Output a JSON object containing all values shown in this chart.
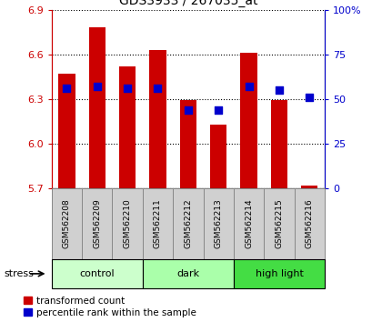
{
  "title": "GDS3933 / 267035_at",
  "samples": [
    "GSM562208",
    "GSM562209",
    "GSM562210",
    "GSM562211",
    "GSM562212",
    "GSM562213",
    "GSM562214",
    "GSM562215",
    "GSM562216"
  ],
  "transformed_counts": [
    6.47,
    6.78,
    6.52,
    6.63,
    6.29,
    6.13,
    6.61,
    6.29,
    5.72
  ],
  "percentile_ranks": [
    56,
    57,
    56,
    56,
    44,
    44,
    57,
    55,
    51
  ],
  "ylim": [
    5.7,
    6.9
  ],
  "yticks": [
    5.7,
    6.0,
    6.3,
    6.6,
    6.9
  ],
  "y_right_ticks": [
    0,
    25,
    50,
    75,
    100
  ],
  "bar_color": "#cc0000",
  "dot_color": "#0000cc",
  "group_configs": [
    {
      "start": 0,
      "end": 2,
      "label": "control",
      "color": "#ccffcc"
    },
    {
      "start": 3,
      "end": 5,
      "label": "dark",
      "color": "#aaffaa"
    },
    {
      "start": 6,
      "end": 8,
      "label": "high light",
      "color": "#44dd44"
    }
  ],
  "stress_label": "stress",
  "legend_red_label": "transformed count",
  "legend_blue_label": "percentile rank within the sample",
  "bar_bottom": 5.7,
  "dot_size": 35,
  "label_bg_color": "#d0d0d0",
  "label_border_color": "#888888"
}
